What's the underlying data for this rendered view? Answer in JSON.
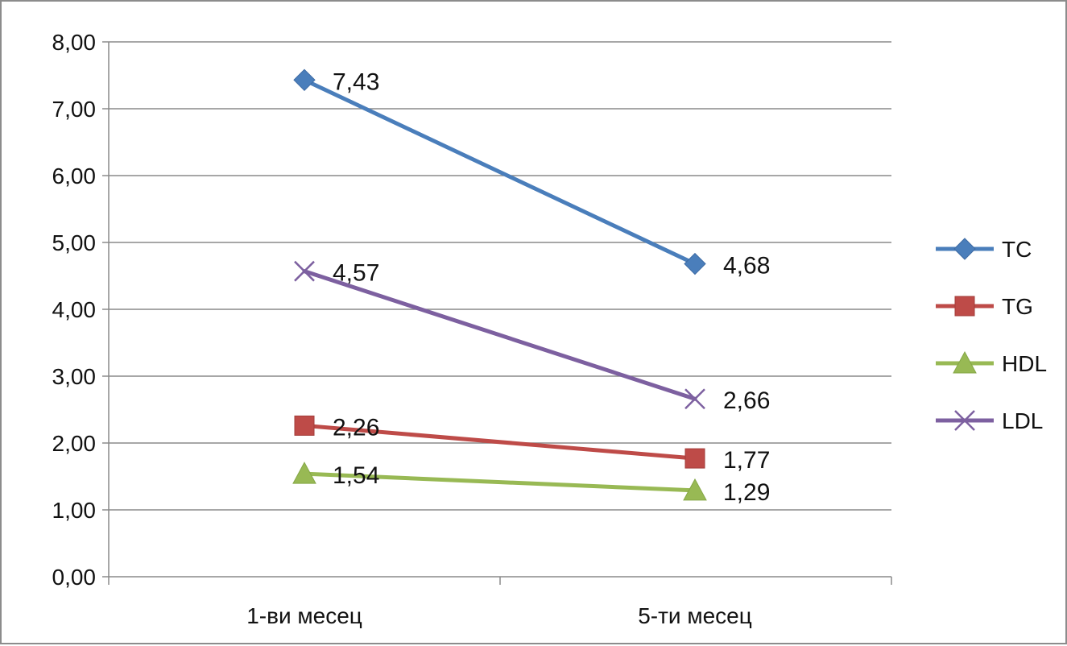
{
  "chart_data": {
    "type": "line",
    "categories": [
      "1-ви месец",
      "5-ти месец"
    ],
    "series": [
      {
        "name": "TC",
        "values": [
          7.43,
          4.68
        ],
        "labels": [
          "7,43",
          "4,68"
        ],
        "color": "#4a7ebb",
        "marker": "diamond"
      },
      {
        "name": "TG",
        "values": [
          2.26,
          1.77
        ],
        "labels": [
          "2,26",
          "1,77"
        ],
        "color": "#be4b48",
        "marker": "square"
      },
      {
        "name": "HDL",
        "values": [
          1.54,
          1.29
        ],
        "labels": [
          "1,54",
          "1,29"
        ],
        "color": "#98b954",
        "marker": "triangle"
      },
      {
        "name": "LDL",
        "values": [
          4.57,
          2.66
        ],
        "labels": [
          "4,57",
          "2,66"
        ],
        "color": "#7d60a0",
        "marker": "x"
      }
    ],
    "y_ticks": [
      "0,00",
      "1,00",
      "2,00",
      "3,00",
      "4,00",
      "5,00",
      "6,00",
      "7,00",
      "8,00"
    ],
    "ylim": [
      0,
      8
    ],
    "grid": true,
    "legend_position": "right"
  }
}
